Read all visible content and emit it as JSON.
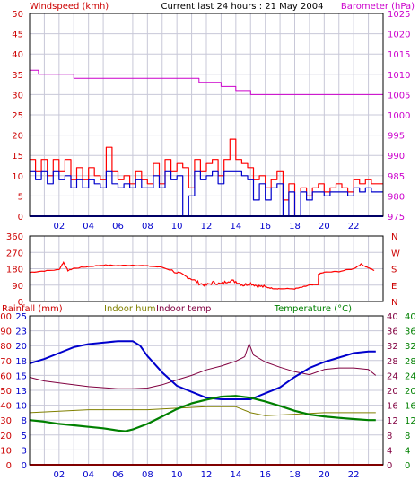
{
  "page": {
    "title": "Current last 24 hours : 21 May 2004",
    "x_ticks": [
      "02",
      "04",
      "06",
      "08",
      "10",
      "12",
      "14",
      "16",
      "18",
      "20",
      "22"
    ]
  },
  "colors": {
    "frame": "#000000",
    "grid": "#c8c8d8",
    "windspeed": "#ff0000",
    "windspeed_avg": "#0000cc",
    "barometer": "#cc00cc",
    "wind_dir": "#ff0000",
    "humidity_out": "#0000cc",
    "humidity_in": "#808000",
    "temp_in": "#800040",
    "temp_out": "#008000",
    "rain": "#ff0000",
    "label_red": "#cc0000",
    "label_blue": "#0000cc",
    "label_magenta": "#cc00cc"
  },
  "chart_data": [
    {
      "type": "line",
      "panel": "wind-barometer",
      "labels": {
        "left": "Windspeed (kmh)",
        "right": "Barometer (hPa)"
      },
      "x_range": [
        0,
        24
      ],
      "y_left_ticks": [
        "0",
        "5",
        "10",
        "15",
        "20",
        "25",
        "30",
        "35",
        "40",
        "45",
        "50"
      ],
      "y_left_range": [
        0,
        50
      ],
      "y_right_ticks": [
        "975",
        "980",
        "985",
        "990",
        "995",
        "1000",
        "1005",
        "1010",
        "1015",
        "1020",
        "1025"
      ],
      "y_right_range": [
        975,
        1025
      ],
      "grid": true,
      "series": [
        {
          "key": "gust",
          "axis": "left",
          "step": true,
          "x": [
            0.0,
            0.4,
            0.8,
            1.2,
            1.6,
            2.0,
            2.4,
            2.8,
            3.2,
            3.6,
            4.0,
            4.4,
            4.8,
            5.2,
            5.6,
            6.0,
            6.4,
            6.8,
            7.2,
            7.6,
            8.0,
            8.4,
            8.8,
            9.2,
            9.6,
            10.0,
            10.4,
            10.8,
            11.2,
            11.6,
            12.0,
            12.4,
            12.8,
            13.2,
            13.6,
            14.0,
            14.4,
            14.8,
            15.2,
            15.6,
            16.0,
            16.4,
            16.8,
            17.2,
            17.6,
            18.0,
            18.4,
            18.8,
            19.2,
            19.6,
            20.0,
            20.4,
            20.8,
            21.2,
            21.6,
            22.0,
            22.4,
            22.8,
            23.2
          ],
          "y": [
            14,
            11,
            14,
            10,
            14,
            11,
            14,
            9,
            12,
            9,
            12,
            10,
            9,
            17,
            11,
            9,
            10,
            8,
            11,
            9,
            8,
            13,
            8,
            14,
            11,
            13,
            12,
            7,
            14,
            11,
            13,
            14,
            10,
            14,
            19,
            14,
            13,
            12,
            9,
            10,
            7,
            9,
            11,
            4,
            8,
            0,
            7,
            5,
            7,
            8,
            6,
            7,
            8,
            7,
            6,
            9,
            8,
            9,
            8
          ]
        },
        {
          "key": "average",
          "axis": "left",
          "step": true,
          "x": [
            0.0,
            0.4,
            0.8,
            1.2,
            1.6,
            2.0,
            2.4,
            2.8,
            3.2,
            3.6,
            4.0,
            4.4,
            4.8,
            5.2,
            5.6,
            6.0,
            6.4,
            6.8,
            7.2,
            7.6,
            8.0,
            8.4,
            8.8,
            9.2,
            9.6,
            10.0,
            10.4,
            10.8,
            11.2,
            11.6,
            12.0,
            12.4,
            12.8,
            13.2,
            13.6,
            14.0,
            14.4,
            14.8,
            15.2,
            15.6,
            16.0,
            16.4,
            16.8,
            17.2,
            17.6,
            18.0,
            18.4,
            18.8,
            19.2,
            19.6,
            20.0,
            20.4,
            20.8,
            21.2,
            21.6,
            22.0,
            22.4,
            22.8,
            23.2
          ],
          "y": [
            11,
            9,
            11,
            8,
            11,
            9,
            10,
            7,
            9,
            7,
            9,
            8,
            7,
            11,
            8,
            7,
            8,
            7,
            9,
            7,
            7,
            10,
            7,
            11,
            9,
            10,
            0,
            5,
            11,
            9,
            10,
            11,
            8,
            11,
            11,
            11,
            10,
            9,
            4,
            8,
            4,
            7,
            8,
            0,
            6,
            0,
            6,
            4,
            6,
            6,
            5,
            6,
            6,
            6,
            5,
            7,
            6,
            7,
            6
          ]
        },
        {
          "key": "barometer",
          "axis": "right",
          "step": true,
          "x": [
            0.0,
            0.6,
            3.0,
            8.0,
            11.5,
            13.0,
            14.0,
            15.0,
            24.0
          ],
          "y": [
            1011,
            1010,
            1009,
            1009,
            1008,
            1007,
            1006,
            1005,
            1005
          ]
        }
      ]
    },
    {
      "type": "line",
      "panel": "wind-direction",
      "x_range": [
        0,
        24
      ],
      "y_left_ticks": [
        "0",
        "90",
        "180",
        "270",
        "360"
      ],
      "y_left_range": [
        0,
        360
      ],
      "y_right_ticks": [
        "N",
        "E",
        "S",
        "W",
        "N"
      ],
      "grid": true,
      "series": [
        {
          "key": "direction",
          "x": [
            0.0,
            1.0,
            2.0,
            2.3,
            2.6,
            3.0,
            4.0,
            5.0,
            6.0,
            7.0,
            8.0,
            9.0,
            10.0,
            10.5,
            11.0,
            11.5,
            12.0,
            12.5,
            13.0,
            13.5,
            14.0,
            14.5,
            15.0,
            15.5,
            16.0,
            16.5,
            17.0,
            18.0,
            18.5,
            19.0,
            19.6,
            19.61,
            20.0,
            21.0,
            22.0,
            22.5,
            23.0,
            23.4
          ],
          "y": [
            160,
            168,
            175,
            215,
            170,
            182,
            192,
            200,
            197,
            200,
            195,
            188,
            160,
            140,
            125,
            100,
            90,
            105,
            95,
            115,
            110,
            90,
            100,
            85,
            80,
            72,
            70,
            70,
            78,
            90,
            92,
            150,
            160,
            165,
            180,
            205,
            185,
            170
          ]
        }
      ]
    },
    {
      "type": "line",
      "panel": "humidity-temperature",
      "labels": {
        "rain": "Rainfall (mm)",
        "hum_in": "Indoor hum",
        "temp_in": "Indoor temp",
        "temp_out": "Temperature (°C)"
      },
      "x_range": [
        0,
        24
      ],
      "y_left1_ticks": [
        "0",
        "10",
        "20",
        "30",
        "40",
        "50",
        "60",
        "70",
        "80",
        "90",
        "100"
      ],
      "y_left2_ticks": [
        "0",
        "3",
        "5",
        "8",
        "10",
        "13",
        "15",
        "18",
        "20",
        "23",
        "25"
      ],
      "y_right1_ticks": [
        "0",
        "4",
        "8",
        "12",
        "16",
        "20",
        "24",
        "28",
        "32",
        "36",
        "40"
      ],
      "y_right2_ticks": [
        "0",
        "4",
        "8",
        "12",
        "16",
        "20",
        "24",
        "28",
        "32",
        "36",
        "40"
      ],
      "y_left_range": [
        0,
        100
      ],
      "y_right_range": [
        0,
        40
      ],
      "grid": true,
      "series": [
        {
          "key": "humidity_out",
          "axis": "left",
          "x": [
            0,
            1,
            2,
            3,
            4,
            5,
            6,
            7,
            7.5,
            8,
            9,
            10,
            11,
            12,
            13,
            14,
            15,
            16,
            17,
            18,
            19,
            20,
            21,
            22,
            23,
            23.5
          ],
          "y": [
            68,
            71,
            75,
            79,
            81,
            82,
            83,
            83,
            80,
            73,
            62,
            53,
            49,
            45,
            44,
            44,
            44,
            48,
            52,
            59,
            65,
            69,
            72,
            75,
            76,
            76
          ]
        },
        {
          "key": "humidity_in",
          "axis": "left",
          "x": [
            0,
            2,
            4,
            6,
            8,
            10,
            12,
            14,
            15,
            16,
            18,
            20,
            22,
            23.5
          ],
          "y": [
            35,
            36,
            37,
            37,
            37,
            38,
            39,
            39,
            35,
            33,
            34,
            35,
            35,
            35
          ]
        },
        {
          "key": "temp_in",
          "axis": "right",
          "x": [
            0,
            1,
            2,
            4,
            6,
            7,
            8,
            9,
            10,
            11,
            12,
            13,
            14,
            14.6,
            14.9,
            15.2,
            16,
            17,
            18,
            19,
            20,
            21,
            22,
            23,
            23.5
          ],
          "y": [
            23.5,
            22.5,
            22.0,
            21.0,
            20.4,
            20.4,
            20.6,
            21.5,
            22.8,
            24.0,
            25.5,
            26.5,
            27.8,
            29.0,
            32.5,
            29.5,
            27.6,
            26.2,
            25.0,
            24.2,
            25.6,
            26.0,
            26.0,
            25.6,
            24.0
          ]
        },
        {
          "key": "temp_out",
          "axis": "right",
          "x": [
            0,
            1,
            2,
            3,
            4,
            5,
            6,
            6.5,
            7,
            8,
            9,
            10,
            11,
            12,
            13,
            14,
            15,
            16,
            17,
            18,
            19,
            20,
            21,
            22,
            23,
            23.5
          ],
          "y": [
            12.0,
            11.6,
            11.0,
            10.6,
            10.2,
            9.8,
            9.2,
            9.0,
            9.5,
            11.0,
            13.0,
            15.0,
            16.5,
            17.5,
            18.3,
            18.5,
            18.0,
            17.0,
            15.8,
            14.5,
            13.5,
            13.0,
            12.6,
            12.3,
            12.0,
            12.0
          ]
        },
        {
          "key": "rain",
          "axis": "left",
          "x": [
            0,
            24
          ],
          "y": [
            0,
            0
          ]
        }
      ]
    }
  ]
}
